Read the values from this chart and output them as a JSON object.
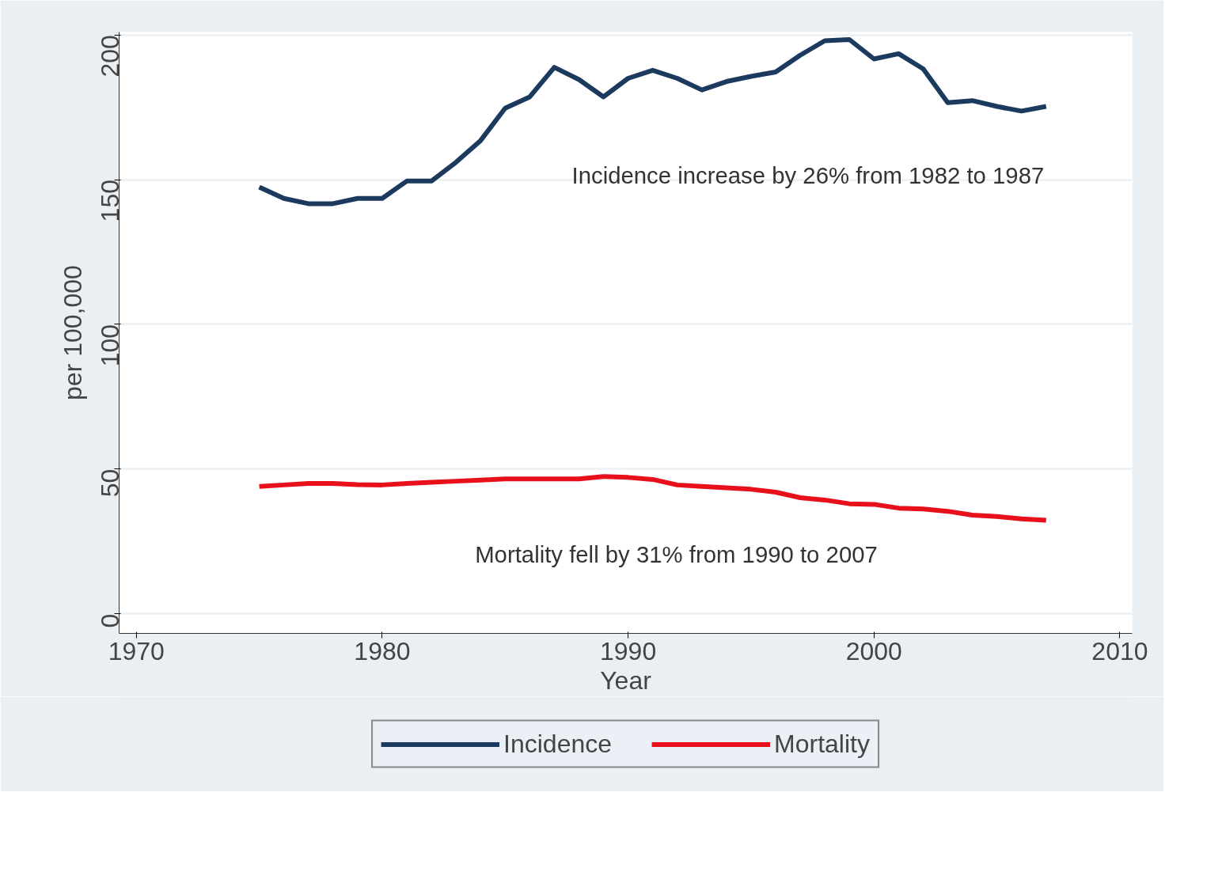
{
  "chart_data": {
    "type": "line",
    "xlabel": "Year",
    "ylabel": "per 100,000",
    "x": [
      1975,
      1976,
      1977,
      1978,
      1979,
      1980,
      1981,
      1982,
      1983,
      1984,
      1985,
      1986,
      1987,
      1988,
      1989,
      1990,
      1991,
      1992,
      1993,
      1994,
      1995,
      1996,
      1997,
      1998,
      1999,
      2000,
      2001,
      2002,
      2003,
      2004,
      2005,
      2006,
      2007
    ],
    "series": [
      {
        "name": "Incidence",
        "color": "#1c3a5e",
        "values": [
          147.4,
          143.5,
          141.7,
          141.7,
          143.5,
          143.5,
          149.5,
          149.5,
          156,
          163.5,
          174.7,
          178.6,
          188.8,
          184.6,
          178.6,
          185,
          187.8,
          185,
          181,
          183.9,
          185.7,
          187.2,
          193,
          198,
          198.4,
          191.7,
          193.5,
          188.3,
          176.6,
          177.3,
          175.3,
          173.7,
          175.3
        ]
      },
      {
        "name": "Mortality",
        "color": "#e8101a",
        "values": [
          44,
          44.5,
          45,
          45,
          44.6,
          44.5,
          45,
          45.4,
          45.8,
          46.2,
          46.6,
          46.6,
          46.6,
          46.6,
          47.4,
          47.1,
          46.4,
          44.5,
          44,
          43.5,
          43,
          42,
          40.1,
          39.3,
          38,
          37.8,
          36.5,
          36.2,
          35.4,
          34.1,
          33.6,
          32.8,
          32.3
        ]
      }
    ],
    "xlim": [
      1969.3,
      2010.5
    ],
    "xticks": [
      1970,
      1980,
      1990,
      2000,
      2010
    ],
    "ylim": [
      -6.8,
      201
    ],
    "yticks": [
      0,
      50,
      100,
      150,
      200
    ],
    "grid": "y",
    "legend": "bottom",
    "line_style": "solid",
    "marker": "none",
    "annotations": [
      "Incidence increase by 26% from 1982 to 1987",
      "Mortality fell by 31% from 1990 to 2007"
    ]
  }
}
